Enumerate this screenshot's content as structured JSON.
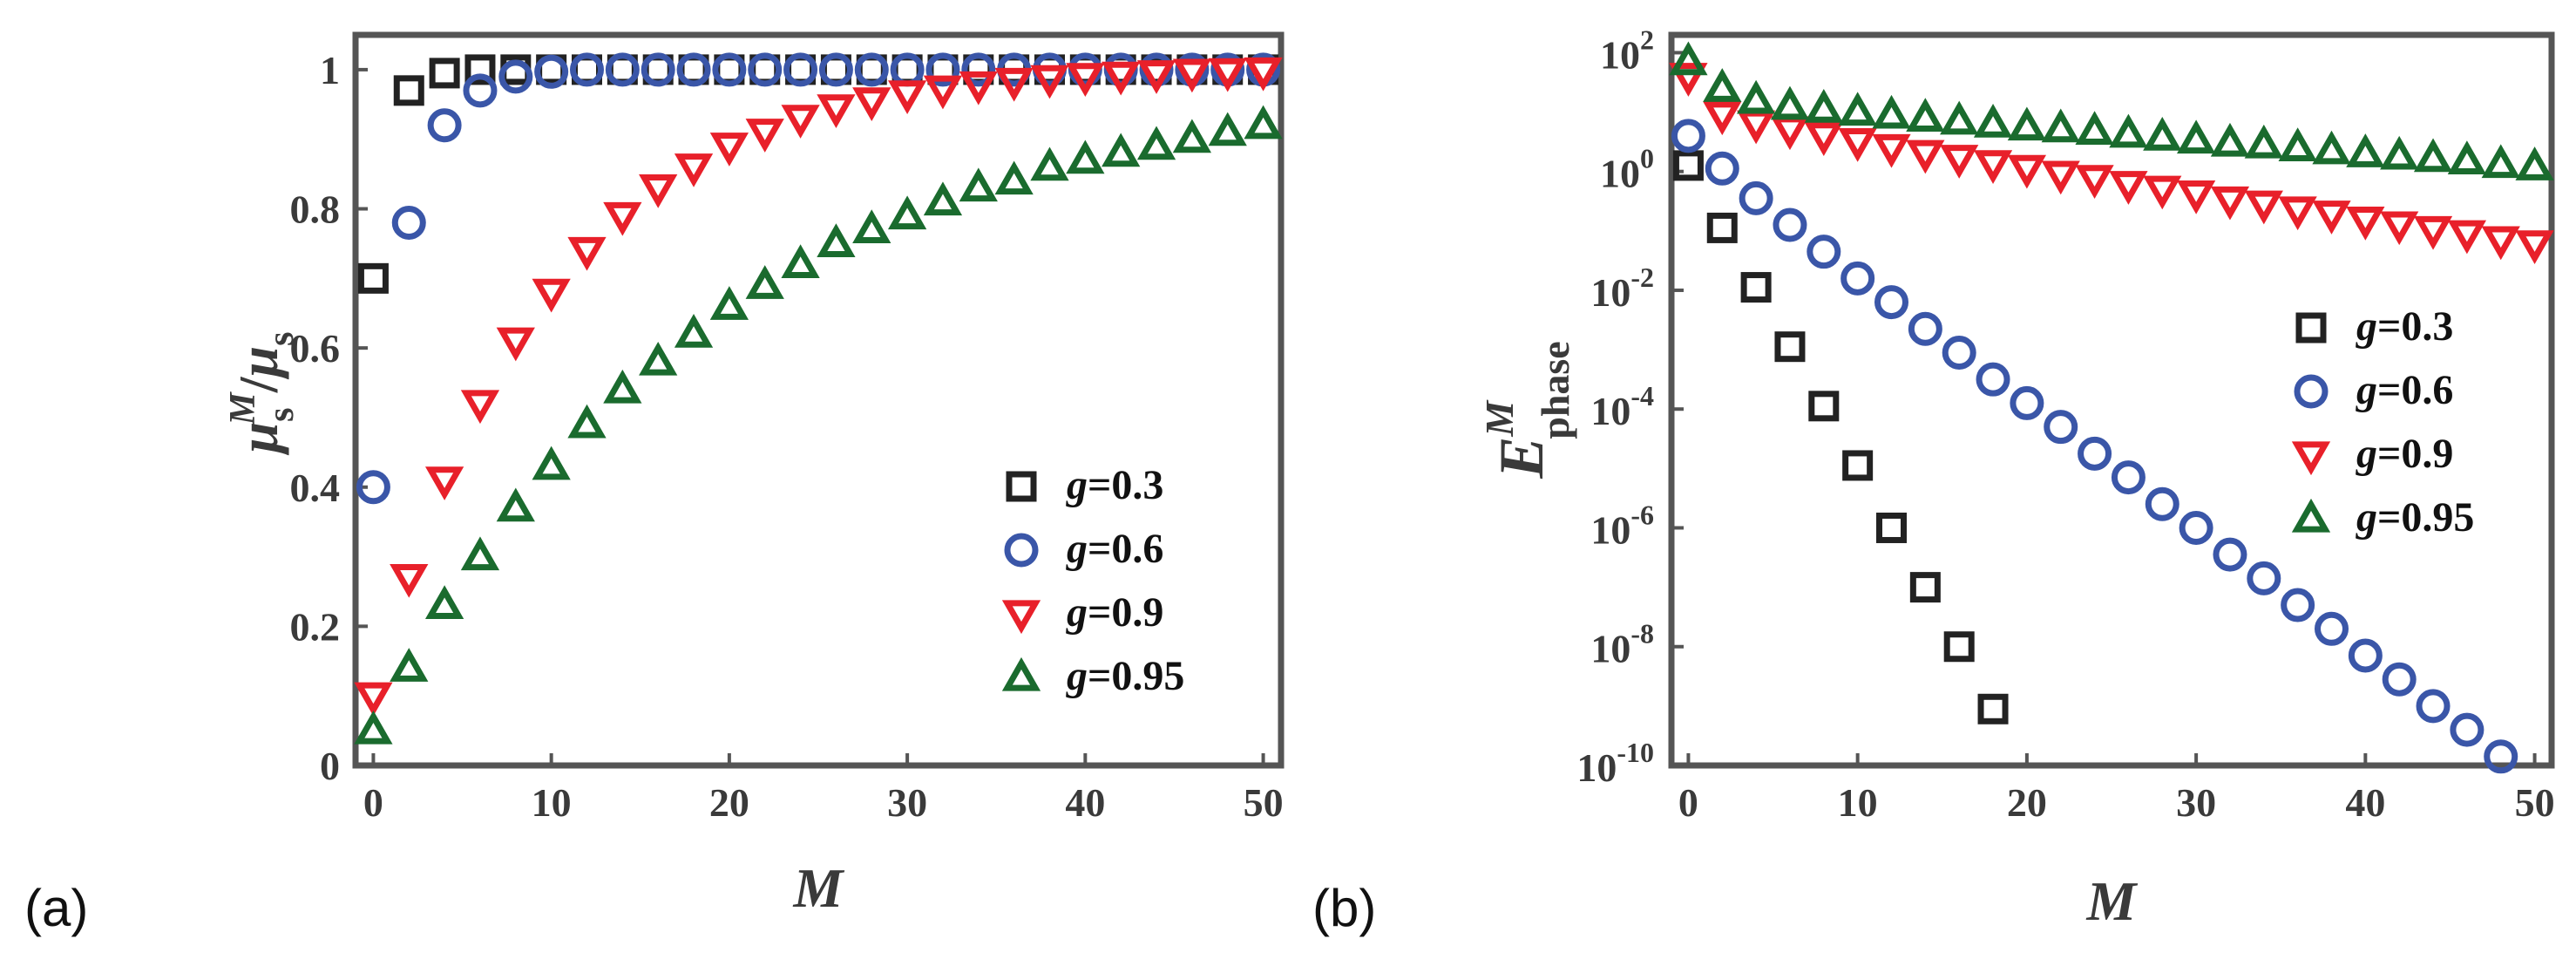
{
  "colors": {
    "g03": "#222222",
    "g06": "#3a56a8",
    "g09": "#e8202a",
    "g095": "#1a6b2e",
    "axis": "#555555"
  },
  "chart_data": [
    {
      "panel_label": "(a)",
      "type": "scatter",
      "xlabel": "M",
      "ylabel": {
        "mu": "μ",
        "sub": "s",
        "sup": "M",
        "slash": "/",
        "mu2": "μ",
        "sub2": "s"
      },
      "xlim": [
        -1,
        51
      ],
      "ylim": [
        0,
        1.05
      ],
      "xticks": [
        "0",
        "10",
        "20",
        "30",
        "40",
        "50"
      ],
      "yticks": [
        "0",
        "0.2",
        "0.4",
        "0.6",
        "0.8",
        "1"
      ],
      "legend_position": "bottom-right",
      "series": [
        {
          "name": "g=0.3",
          "g": "0.3",
          "marker": "square",
          "x": [
            0,
            2,
            4,
            6,
            8,
            10,
            12,
            14,
            16,
            18,
            20,
            22,
            24,
            26,
            28,
            30,
            32,
            34,
            36,
            38,
            40,
            42,
            44,
            46,
            48,
            50
          ],
          "y": [
            0.7,
            0.97,
            0.995,
            1,
            1,
            1,
            1,
            1,
            1,
            1,
            1,
            1,
            1,
            1,
            1,
            1,
            1,
            1,
            1,
            1,
            1,
            1,
            1,
            1,
            1,
            1
          ]
        },
        {
          "name": "g=0.6",
          "g": "0.6",
          "marker": "circle",
          "x": [
            0,
            2,
            4,
            6,
            8,
            10,
            12,
            14,
            16,
            18,
            20,
            22,
            24,
            26,
            28,
            30,
            32,
            34,
            36,
            38,
            40,
            42,
            44,
            46,
            48,
            50
          ],
          "y": [
            0.4,
            0.78,
            0.92,
            0.97,
            0.99,
            0.997,
            1,
            1,
            1,
            1,
            1,
            1,
            1,
            1,
            1,
            1,
            1,
            1,
            1,
            1,
            1,
            1,
            1,
            1,
            1,
            1
          ]
        },
        {
          "name": "g=0.9",
          "g": "0.9",
          "marker": "triangle-down",
          "x": [
            0,
            2,
            4,
            6,
            8,
            10,
            12,
            14,
            16,
            18,
            20,
            22,
            24,
            26,
            28,
            30,
            32,
            34,
            36,
            38,
            40,
            42,
            44,
            46,
            48,
            50
          ],
          "y": [
            0.1,
            0.27,
            0.41,
            0.52,
            0.61,
            0.68,
            0.74,
            0.79,
            0.83,
            0.86,
            0.89,
            0.91,
            0.93,
            0.945,
            0.955,
            0.965,
            0.972,
            0.978,
            0.983,
            0.987,
            0.99,
            0.992,
            0.994,
            0.996,
            0.997,
            0.998
          ]
        },
        {
          "name": "g=0.95",
          "g": "0.95",
          "marker": "triangle-up",
          "x": [
            0,
            2,
            4,
            6,
            8,
            10,
            12,
            14,
            16,
            18,
            20,
            22,
            24,
            26,
            28,
            30,
            32,
            34,
            36,
            38,
            40,
            42,
            44,
            46,
            48,
            50
          ],
          "y": [
            0.05,
            0.14,
            0.23,
            0.3,
            0.37,
            0.43,
            0.49,
            0.54,
            0.58,
            0.62,
            0.66,
            0.69,
            0.72,
            0.75,
            0.77,
            0.79,
            0.81,
            0.83,
            0.84,
            0.86,
            0.87,
            0.88,
            0.89,
            0.9,
            0.91,
            0.92
          ]
        }
      ]
    },
    {
      "panel_label": "(b)",
      "type": "scatter",
      "xlabel": "M",
      "ylabel": {
        "main": "E",
        "sup": "M",
        "sub": "phase"
      },
      "xlim": [
        -1,
        51
      ],
      "ylim_log10": [
        -10,
        2.3
      ],
      "yscale": "log",
      "xticks": [
        "0",
        "10",
        "20",
        "30",
        "40",
        "50"
      ],
      "yticks": [
        {
          "base": "10",
          "exp": "2",
          "log": 2
        },
        {
          "base": "10",
          "exp": "0",
          "log": 0
        },
        {
          "base": "10",
          "exp": "-2",
          "log": -2
        },
        {
          "base": "10",
          "exp": "-4",
          "log": -4
        },
        {
          "base": "10",
          "exp": "-6",
          "log": -6
        },
        {
          "base": "10",
          "exp": "-8",
          "log": -8
        },
        {
          "base": "10",
          "exp": "-10",
          "log": -10
        }
      ],
      "legend_position": "top-right",
      "series": [
        {
          "name": "g=0.3",
          "g": "0.3",
          "marker": "square",
          "x": [
            0,
            2,
            4,
            6,
            8,
            10,
            12,
            14,
            16,
            18
          ],
          "log10_y": [
            0.1,
            -0.95,
            -1.95,
            -2.95,
            -3.95,
            -4.95,
            -6.0,
            -7.0,
            -8.0,
            -9.05
          ]
        },
        {
          "name": "g=0.6",
          "g": "0.6",
          "marker": "circle",
          "x": [
            0,
            2,
            4,
            6,
            8,
            10,
            12,
            14,
            16,
            18,
            20,
            22,
            24,
            26,
            28,
            30,
            32,
            34,
            36,
            38,
            40,
            42,
            44,
            46,
            48
          ],
          "log10_y": [
            0.6,
            0.05,
            -0.45,
            -0.9,
            -1.35,
            -1.8,
            -2.2,
            -2.65,
            -3.05,
            -3.5,
            -3.9,
            -4.3,
            -4.75,
            -5.15,
            -5.6,
            -6.0,
            -6.45,
            -6.85,
            -7.3,
            -7.7,
            -8.15,
            -8.55,
            -9.0,
            -9.4,
            -9.85
          ]
        },
        {
          "name": "g=0.9",
          "g": "0.9",
          "marker": "triangle-down",
          "x": [
            0,
            2,
            4,
            6,
            8,
            10,
            12,
            14,
            16,
            18,
            20,
            22,
            24,
            26,
            28,
            30,
            32,
            34,
            36,
            38,
            40,
            42,
            44,
            46,
            48,
            50
          ],
          "log10_y": [
            1.6,
            0.95,
            0.8,
            0.7,
            0.6,
            0.5,
            0.4,
            0.3,
            0.22,
            0.13,
            0.05,
            -0.05,
            -0.12,
            -0.22,
            -0.3,
            -0.38,
            -0.48,
            -0.55,
            -0.65,
            -0.72,
            -0.82,
            -0.9,
            -0.98,
            -1.05,
            -1.15,
            -1.22
          ]
        },
        {
          "name": "g=0.95",
          "g": "0.95",
          "marker": "triangle-up",
          "x": [
            0,
            2,
            4,
            6,
            8,
            10,
            12,
            14,
            16,
            18,
            20,
            22,
            24,
            26,
            28,
            30,
            32,
            34,
            36,
            38,
            40,
            42,
            44,
            46,
            48,
            50
          ],
          "log10_y": [
            1.85,
            1.4,
            1.2,
            1.1,
            1.05,
            1.0,
            0.95,
            0.9,
            0.85,
            0.8,
            0.75,
            0.72,
            0.68,
            0.63,
            0.58,
            0.53,
            0.48,
            0.45,
            0.4,
            0.35,
            0.3,
            0.26,
            0.22,
            0.18,
            0.12,
            0.08
          ]
        }
      ]
    }
  ]
}
